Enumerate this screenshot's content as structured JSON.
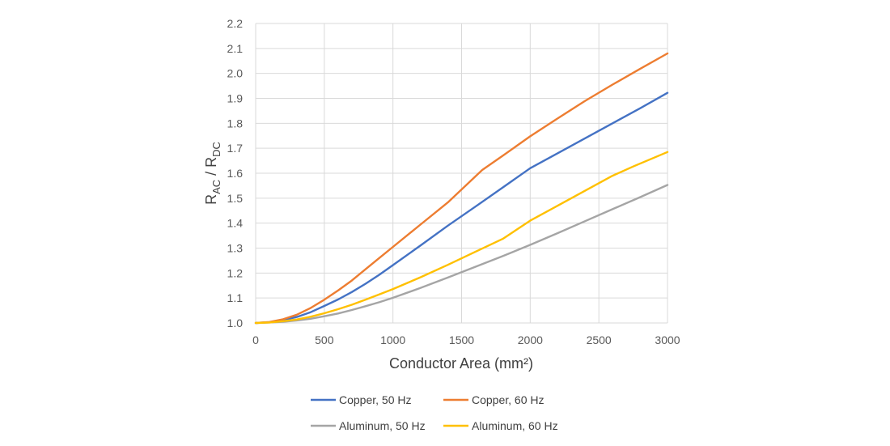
{
  "chart_data": {
    "type": "line",
    "title": "",
    "xlabel": "Conductor Area (mm²)",
    "ylabel": {
      "main": "R",
      "sub1": "AC",
      "sep": " / R",
      "sub2": "DC"
    },
    "xlim": [
      0,
      3000
    ],
    "ylim": [
      1.0,
      2.2
    ],
    "xticks": [
      0,
      500,
      1000,
      1500,
      2000,
      2500,
      3000
    ],
    "yticks": [
      1.0,
      1.1,
      1.2,
      1.3,
      1.4,
      1.5,
      1.6,
      1.7,
      1.8,
      1.9,
      2.0,
      2.1,
      2.2
    ],
    "ytick_labels": [
      "1.0",
      "1.1",
      "1.2",
      "1.3",
      "1.4",
      "1.5",
      "1.6",
      "1.7",
      "1.8",
      "1.9",
      "2.0",
      "2.1",
      "2.2"
    ],
    "grid": true,
    "legend_position": "bottom",
    "series": [
      {
        "name": "Copper, 50 Hz",
        "color": "#4472c4",
        "x": [
          0,
          100,
          200,
          300,
          400,
          500,
          600,
          700,
          800,
          900,
          1000,
          1200,
          1400,
          1600,
          1800,
          2000,
          2200,
          2400,
          2600,
          2800,
          3000
        ],
        "y": [
          1.0,
          1.003,
          1.011,
          1.024,
          1.043,
          1.068,
          1.094,
          1.124,
          1.157,
          1.193,
          1.232,
          1.31,
          1.39,
          1.466,
          1.543,
          1.62,
          1.68,
          1.74,
          1.8,
          1.86,
          1.922
        ]
      },
      {
        "name": "Copper, 60 Hz",
        "color": "#ed7d31",
        "x": [
          0,
          100,
          200,
          300,
          400,
          500,
          600,
          700,
          800,
          900,
          1000,
          1200,
          1400,
          1650,
          1800,
          2000,
          2200,
          2400,
          2600,
          2800,
          3000
        ],
        "y": [
          1.0,
          1.004,
          1.015,
          1.033,
          1.06,
          1.093,
          1.13,
          1.17,
          1.215,
          1.26,
          1.305,
          1.394,
          1.483,
          1.613,
          1.67,
          1.748,
          1.82,
          1.89,
          1.955,
          2.018,
          2.08
        ]
      },
      {
        "name": "Aluminum, 50 Hz",
        "color": "#a5a5a5",
        "x": [
          0,
          100,
          200,
          300,
          400,
          500,
          600,
          700,
          800,
          900,
          1000,
          1200,
          1400,
          1600,
          1800,
          2000,
          2200,
          2400,
          2600,
          2800,
          3000
        ],
        "y": [
          1.0,
          1.002,
          1.005,
          1.01,
          1.017,
          1.027,
          1.038,
          1.052,
          1.067,
          1.083,
          1.101,
          1.14,
          1.182,
          1.225,
          1.268,
          1.313,
          1.36,
          1.408,
          1.456,
          1.504,
          1.553
        ]
      },
      {
        "name": "Aluminum, 60 Hz",
        "color": "#ffc000",
        "x": [
          0,
          100,
          200,
          300,
          400,
          500,
          600,
          700,
          800,
          900,
          1000,
          1200,
          1400,
          1600,
          1800,
          2000,
          2200,
          2400,
          2600,
          2750,
          3000
        ],
        "y": [
          1.0,
          1.002,
          1.007,
          1.014,
          1.025,
          1.039,
          1.055,
          1.073,
          1.093,
          1.114,
          1.136,
          1.183,
          1.233,
          1.285,
          1.337,
          1.41,
          1.47,
          1.53,
          1.59,
          1.627,
          1.685
        ]
      }
    ]
  }
}
